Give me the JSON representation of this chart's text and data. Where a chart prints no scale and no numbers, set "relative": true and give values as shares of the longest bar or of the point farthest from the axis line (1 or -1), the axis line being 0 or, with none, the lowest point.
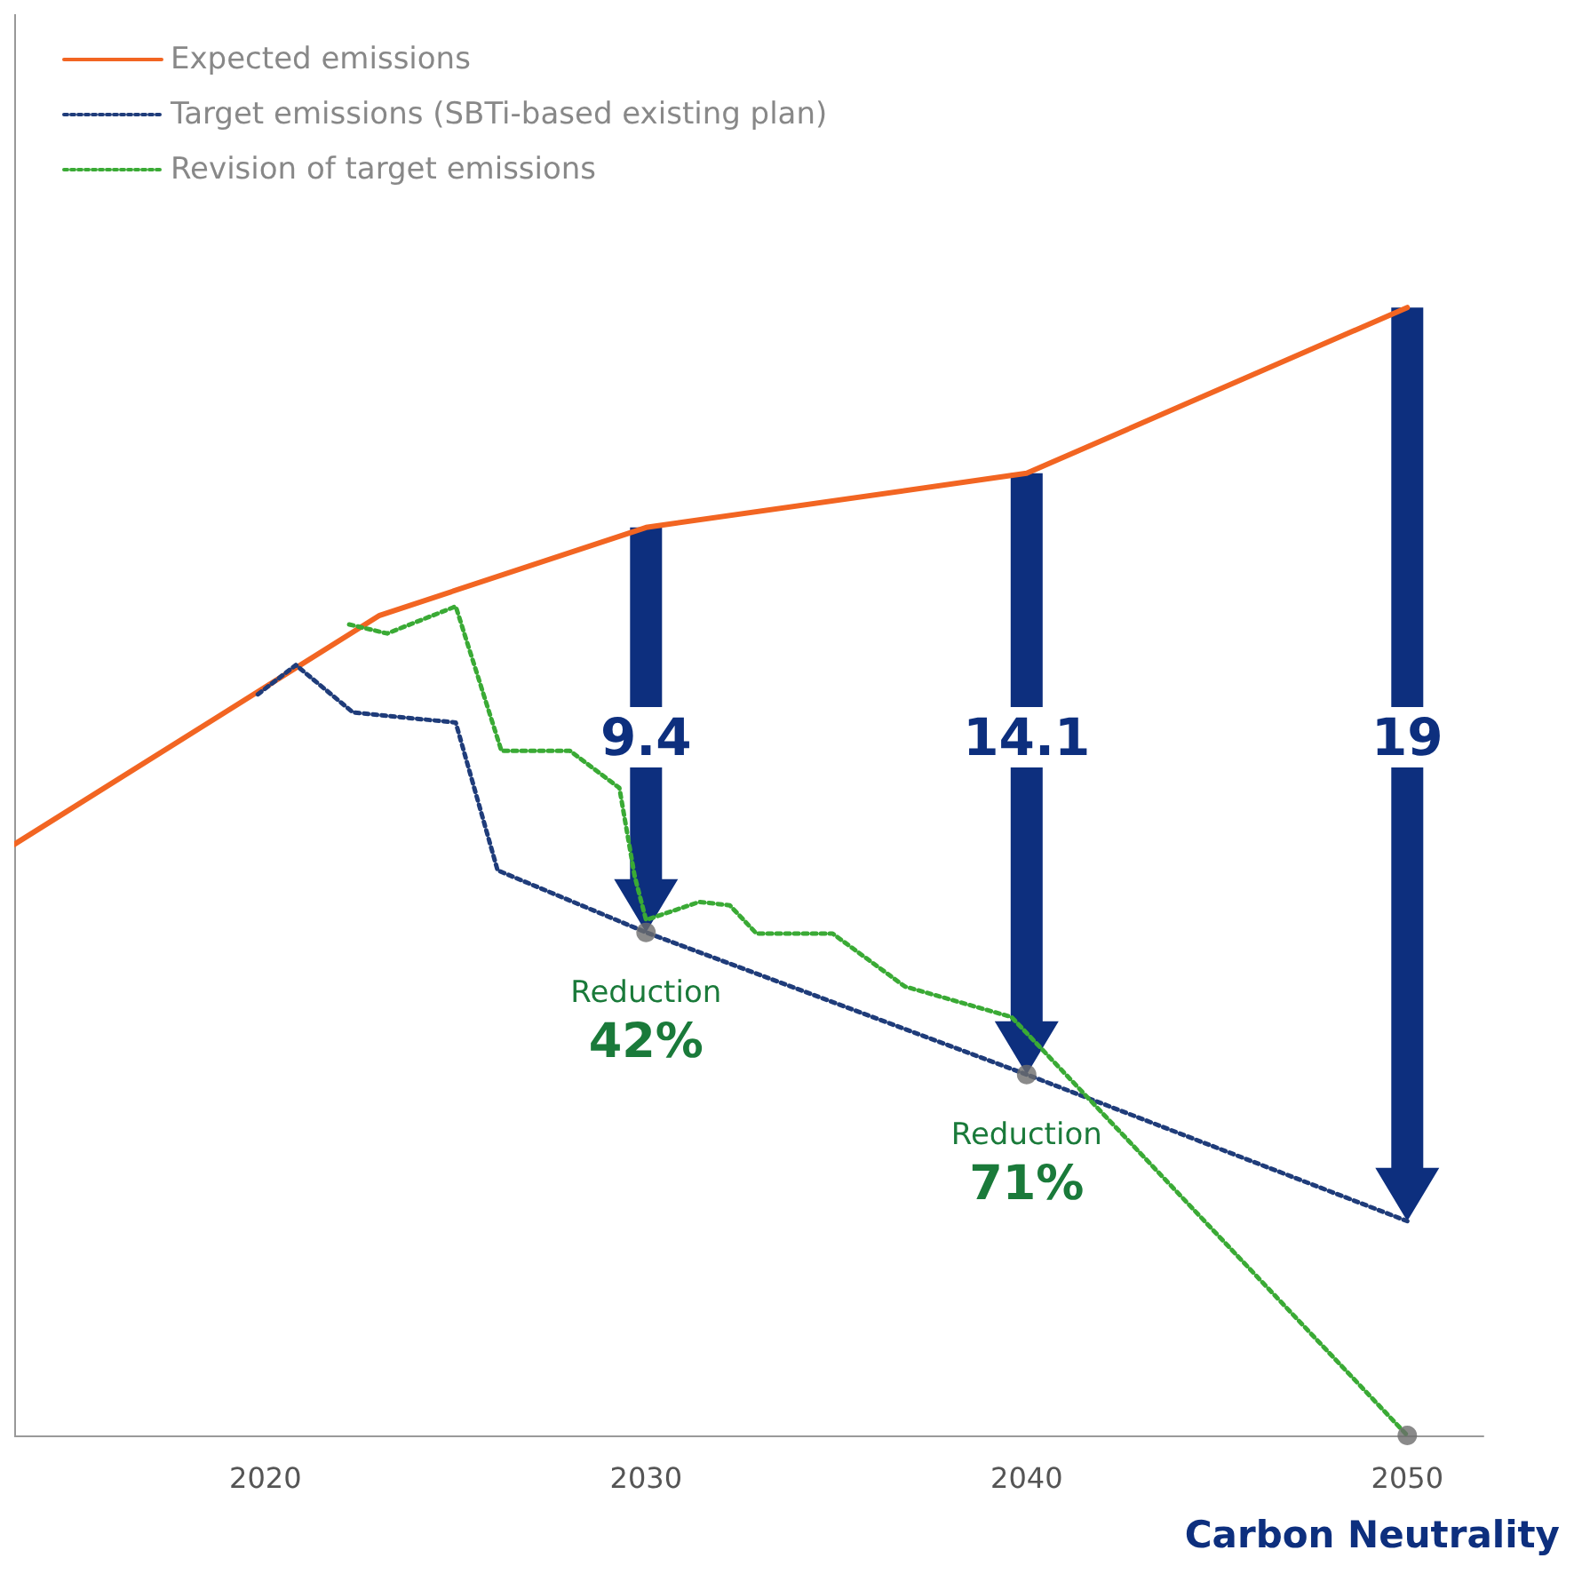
{
  "chart_data": {
    "type": "line",
    "relative": true,
    "xlim": [
      2013.4,
      2052
    ],
    "xticks": [
      2020,
      2030,
      2040,
      2050
    ],
    "legend": "top left",
    "marker": "none",
    "grid": false,
    "series": [
      {
        "name": "Expected emissions",
        "color": "#f26522",
        "line_style": "solid",
        "x": [
          2013.4,
          2023,
          2030,
          2040,
          2050
        ],
        "values": [
          0.524,
          0.727,
          0.805,
          0.853,
          1
        ]
      },
      {
        "name": "Target emissions (SBTi-based existing plan)",
        "color": "#1f3c7a",
        "line_style": "dotted",
        "x": [
          2019.8,
          2020.8,
          2022.3,
          2025,
          2026.1,
          2030,
          2040,
          2050
        ],
        "values": [
          0.657,
          0.683,
          0.641,
          0.632,
          0.501,
          0.446,
          0.32,
          0.19
        ]
      },
      {
        "name": "Revision of target emissions",
        "color": "#3aaa35",
        "line_style": "dotted",
        "x": [
          2022.2,
          2023.2,
          2025,
          2026.2,
          2028,
          2029.3,
          2029.7,
          2030,
          2031.4,
          2032.2,
          2032.9,
          2034.9,
          2036.8,
          2039.6,
          2050
        ],
        "values": [
          0.719,
          0.711,
          0.735,
          0.607,
          0.607,
          0.574,
          0.496,
          0.457,
          0.473,
          0.47,
          0.445,
          0.445,
          0.398,
          0.371,
          0
        ]
      },
      {
        "type": "scatter",
        "color": "#6d6d6d",
        "marker": "circle",
        "x": [
          2030,
          2040,
          2050
        ],
        "values": [
          0.446,
          0.32,
          0
        ]
      }
    ],
    "annotations": [
      "9.4",
      "14.1",
      "19",
      {
        "text": "Reduction\n42%",
        "x": 2030,
        "y": 0.446
      },
      {
        "text": "Reduction\n71%",
        "x": 2040,
        "y": 0.32
      },
      "Carbon Neutrality"
    ]
  }
}
